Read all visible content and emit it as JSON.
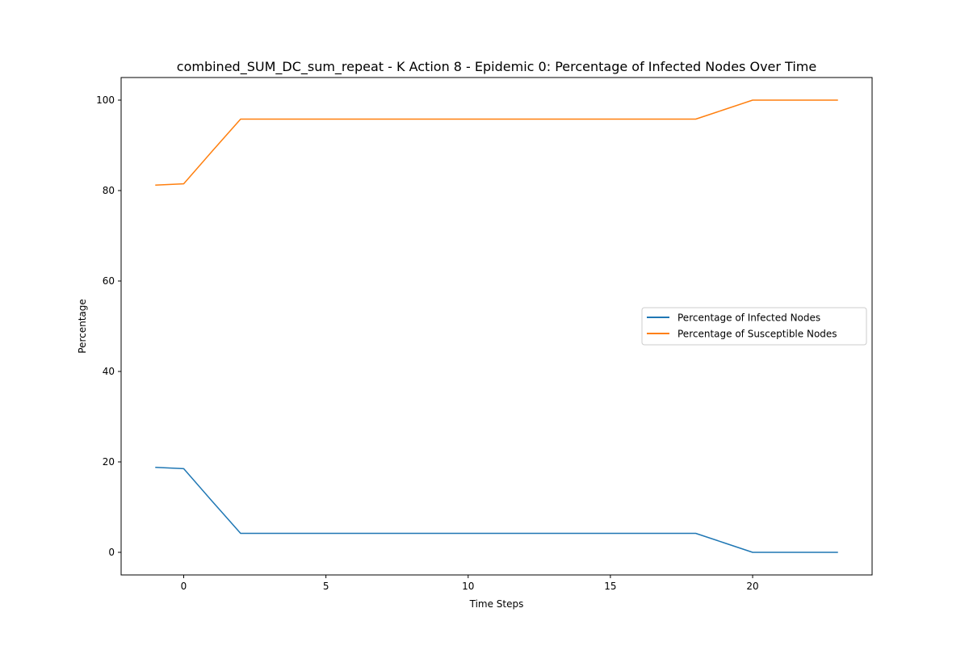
{
  "chart_data": {
    "type": "line",
    "title": "combined_SUM_DC_sum_repeat - K Action 8 - Epidemic 0: Percentage of Infected Nodes Over Time",
    "xlabel": "Time Steps",
    "ylabel": "Percentage",
    "xlim": [
      -2.2,
      24.2
    ],
    "ylim": [
      -5,
      105
    ],
    "xticks": [
      0,
      5,
      10,
      15,
      20
    ],
    "yticks": [
      0,
      20,
      40,
      60,
      80,
      100
    ],
    "grid": false,
    "legend_position": "center-right",
    "x": [
      -1,
      0,
      1,
      2,
      3,
      4,
      5,
      6,
      7,
      8,
      9,
      10,
      11,
      12,
      13,
      14,
      15,
      16,
      17,
      18,
      19,
      20,
      21,
      22,
      23
    ],
    "series": [
      {
        "name": "Percentage of Infected Nodes",
        "color": "#1f77b4",
        "values": [
          18.8,
          18.5,
          11.3,
          4.2,
          4.2,
          4.2,
          4.2,
          4.2,
          4.2,
          4.2,
          4.2,
          4.2,
          4.2,
          4.2,
          4.2,
          4.2,
          4.2,
          4.2,
          4.2,
          4.2,
          2.1,
          0,
          0,
          0,
          0
        ]
      },
      {
        "name": "Percentage of Susceptible Nodes",
        "color": "#ff7f0e",
        "values": [
          81.2,
          81.5,
          88.7,
          95.8,
          95.8,
          95.8,
          95.8,
          95.8,
          95.8,
          95.8,
          95.8,
          95.8,
          95.8,
          95.8,
          95.8,
          95.8,
          95.8,
          95.8,
          95.8,
          95.8,
          97.9,
          100,
          100,
          100,
          100
        ]
      }
    ]
  }
}
